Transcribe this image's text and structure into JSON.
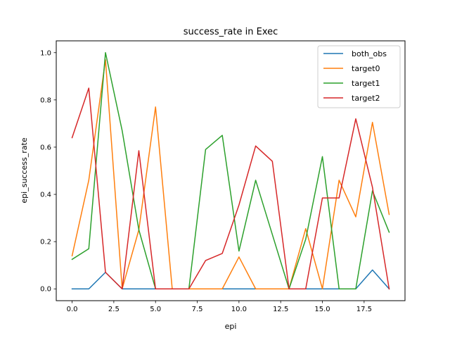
{
  "chart_data": {
    "type": "line",
    "title": "success_rate in Exec",
    "xlabel": "epi",
    "ylabel": "epi_success_rate",
    "xlim": [
      -0.95,
      19.95
    ],
    "ylim": [
      -0.05,
      1.05
    ],
    "xticks": [
      "0.0",
      "2.5",
      "5.0",
      "7.5",
      "10.0",
      "12.5",
      "15.0",
      "17.5"
    ],
    "xtick_values": [
      0,
      2.5,
      5,
      7.5,
      10,
      12.5,
      15,
      17.5
    ],
    "yticks": [
      "0.0",
      "0.2",
      "0.4",
      "0.6",
      "0.8",
      "1.0"
    ],
    "ytick_values": [
      0,
      0.2,
      0.4,
      0.6,
      0.8,
      1.0
    ],
    "grid": false,
    "legend_position": "top-right",
    "x": [
      0,
      1,
      2,
      3,
      4,
      5,
      6,
      7,
      8,
      9,
      10,
      11,
      12,
      13,
      14,
      15,
      16,
      17,
      18,
      19
    ],
    "series": [
      {
        "name": "both_obs",
        "color": "#1f77b4",
        "values": [
          0,
          0,
          0.07,
          0,
          0,
          0,
          0,
          0,
          0,
          0,
          0,
          0,
          0,
          0,
          0,
          0,
          0,
          0,
          0.08,
          0
        ]
      },
      {
        "name": "target0",
        "color": "#ff7f0e",
        "values": [
          0.14,
          0.46,
          0.97,
          0,
          0.25,
          0.77,
          0,
          0,
          0,
          0,
          0.135,
          0,
          0,
          0,
          0.255,
          0,
          0.46,
          0.305,
          0.705,
          0.315
        ]
      },
      {
        "name": "target1",
        "color": "#2ca02c",
        "values": [
          0.125,
          0.17,
          1.0,
          0.67,
          0.25,
          0,
          0,
          0,
          0.59,
          0.65,
          0.16,
          0.46,
          0.23,
          0,
          0.21,
          0.56,
          0,
          0,
          0.415,
          0.24
        ]
      },
      {
        "name": "target2",
        "color": "#d62728",
        "values": [
          0.64,
          0.85,
          0.07,
          0,
          0.585,
          0,
          0,
          0,
          0.12,
          0.15,
          0.355,
          0.605,
          0.54,
          0,
          0,
          0.385,
          0.385,
          0.72,
          0.43,
          0
        ]
      }
    ]
  }
}
